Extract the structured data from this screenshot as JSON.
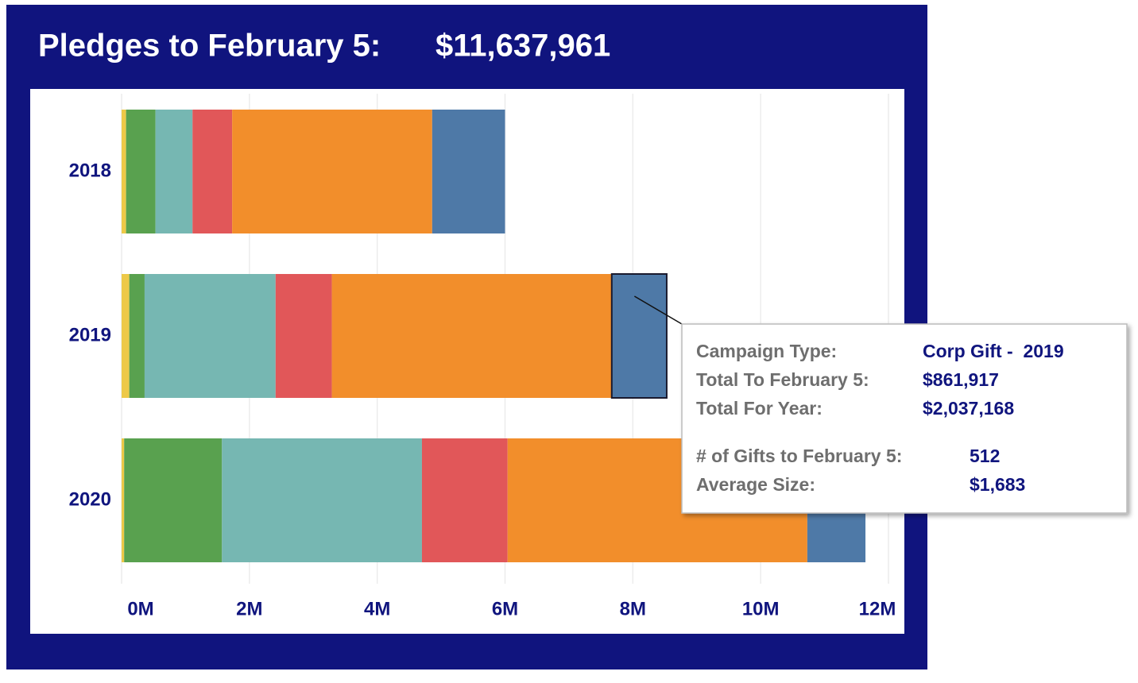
{
  "chart_data": {
    "type": "stacked-bar",
    "title": "Pledges to February 5:",
    "subtitle": "$11,637,961",
    "categories": [
      "2018",
      "2019",
      "2020"
    ],
    "series": [
      {
        "color": "#edc948",
        "values": [
          0.07,
          0.12,
          0.04
        ]
      },
      {
        "color": "#59a14f",
        "values": [
          0.46,
          0.24,
          1.53
        ]
      },
      {
        "color": "#76b7b2",
        "values": [
          0.58,
          2.05,
          3.13
        ]
      },
      {
        "color": "#e15759",
        "values": [
          0.62,
          0.88,
          1.34
        ]
      },
      {
        "color": "#f28e2b",
        "values": [
          3.13,
          4.38,
          4.69
        ]
      },
      {
        "color": "#4e79a7",
        "values": [
          1.14,
          0.86,
          0.91
        ]
      }
    ],
    "xlim": [
      0,
      12
    ],
    "xticks": [
      {
        "value": 0,
        "label": "0M"
      },
      {
        "value": 2,
        "label": "2M"
      },
      {
        "value": 4,
        "label": "4M"
      },
      {
        "value": 6,
        "label": "6M"
      },
      {
        "value": 8,
        "label": "8M"
      },
      {
        "value": 10,
        "label": "10M"
      },
      {
        "value": 12,
        "label": "12M"
      }
    ],
    "grid": true,
    "tooltip": {
      "series": 5,
      "category": 1,
      "rows": [
        [
          "Campaign Type:",
          "Corp Gift -  2019"
        ],
        [
          "Total To February 5:",
          "$861,917"
        ],
        [
          "Total For Year:",
          "$2,037,168"
        ]
      ],
      "rows2": [
        [
          "# of Gifts to February 5:",
          "512"
        ],
        [
          "Average Size:",
          "$1,683"
        ]
      ]
    }
  }
}
